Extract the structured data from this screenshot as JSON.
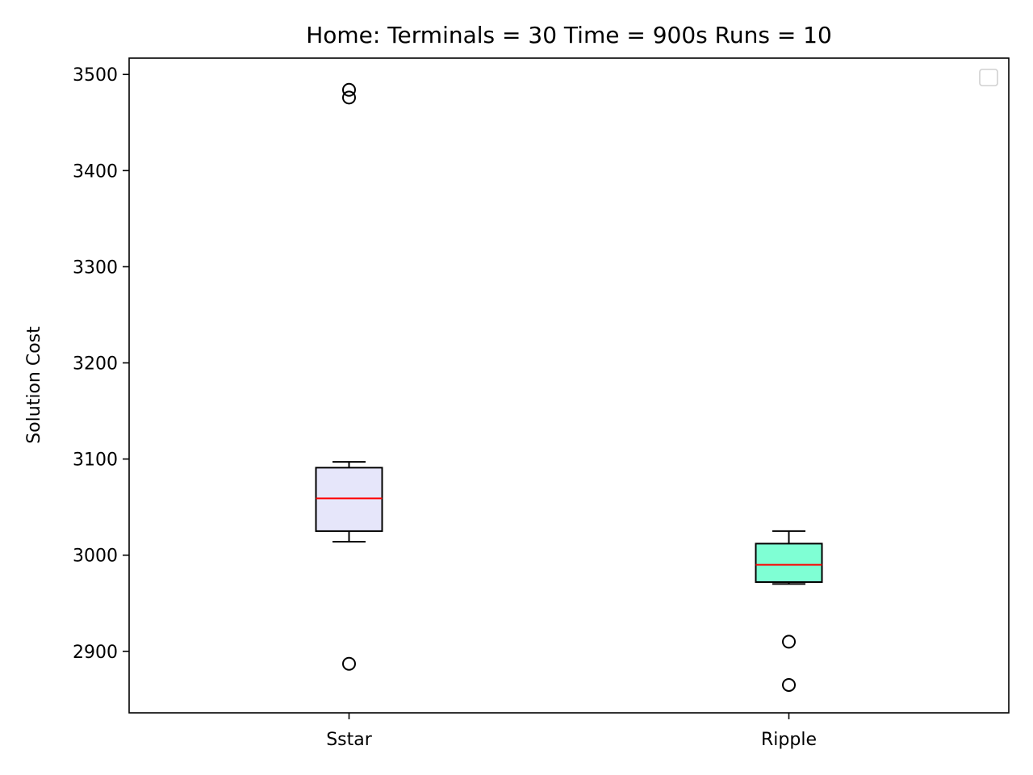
{
  "chart_data": {
    "type": "box",
    "title": "Home:  Terminals = 30  Time = 900s  Runs = 10",
    "ylabel": "Solution Cost",
    "xlabel": "",
    "ylim": [
      2836,
      3517
    ],
    "yticks": [
      2900,
      3000,
      3100,
      3200,
      3300,
      3400,
      3500
    ],
    "grid": false,
    "legend": "top-right",
    "categories": [
      "Sstar",
      "Ripple"
    ],
    "boxes": [
      {
        "label": "Sstar",
        "whisker_low": 3014,
        "q1": 3025,
        "median": 3059,
        "q3": 3091,
        "whisker_high": 3097,
        "outliers": [
          3484,
          3476,
          2887
        ],
        "fill": "#e6e6fa"
      },
      {
        "label": "Ripple",
        "whisker_low": 2970,
        "q1": 2972,
        "median": 2990,
        "q3": 3012,
        "whisker_high": 3025,
        "outliers": [
          2910,
          2865
        ],
        "fill": "#7fffd4"
      }
    ],
    "median_color": "#ff0000"
  }
}
